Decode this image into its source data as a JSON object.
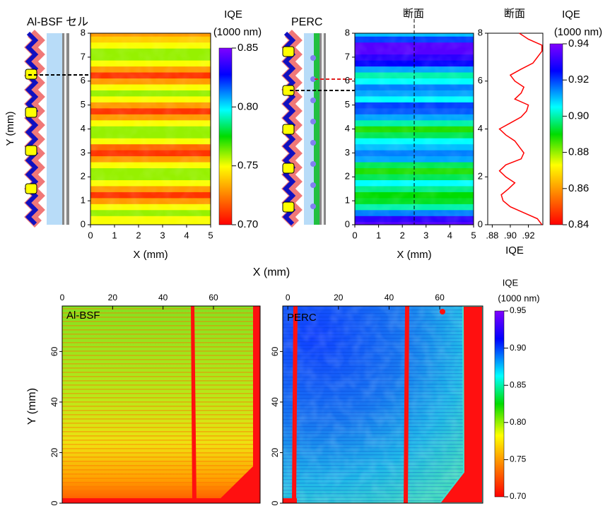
{
  "chart_data": [
    {
      "type": "heatmap",
      "title": "Al-BSF セル",
      "xlabel": "X (mm)",
      "ylabel": "Y (mm)",
      "xlim": [
        0,
        5
      ],
      "ylim": [
        0,
        8
      ],
      "xticks": [
        0,
        1,
        2,
        3,
        4,
        5
      ],
      "yticks": [
        0,
        1,
        2,
        3,
        4,
        5,
        6,
        7,
        8
      ],
      "y": [
        0,
        0.25,
        0.5,
        0.75,
        1,
        1.25,
        1.5,
        1.75,
        2,
        2.25,
        2.5,
        2.75,
        3,
        3.25,
        3.5,
        3.75,
        4,
        4.25,
        4.5,
        4.75,
        5,
        5.25,
        5.5,
        5.75,
        6,
        6.25,
        6.5,
        6.75,
        7,
        7.25,
        7.5,
        7.75,
        8
      ],
      "values": [
        0.75,
        0.75,
        0.76,
        0.75,
        0.73,
        0.71,
        0.73,
        0.75,
        0.76,
        0.76,
        0.75,
        0.73,
        0.71,
        0.72,
        0.75,
        0.76,
        0.76,
        0.75,
        0.73,
        0.71,
        0.73,
        0.75,
        0.76,
        0.75,
        0.73,
        0.71,
        0.73,
        0.75,
        0.76,
        0.76,
        0.75,
        0.74,
        0.73
      ]
    },
    {
      "type": "colorbar",
      "title": "IQE",
      "subtitle": "(1000 nm)",
      "lim": [
        0.7,
        0.85
      ],
      "ticks": [
        {
          "value": 0.7,
          "label": "0.70"
        },
        0.75,
        {
          "value": 0.8,
          "label": "0.80"
        },
        0.85
      ]
    },
    {
      "type": "heatmap",
      "title": "PERC",
      "annotation": "断面",
      "xlabel": "X (mm)",
      "section_x": 2.5,
      "xlim": [
        0,
        5
      ],
      "ylim": [
        0,
        8
      ],
      "xticks": [
        0,
        1,
        2,
        3,
        4,
        5
      ],
      "yticks": [
        0,
        1,
        2,
        3,
        4,
        5,
        6,
        7,
        8
      ],
      "y": [
        0,
        0.25,
        0.5,
        0.75,
        1,
        1.25,
        1.5,
        1.75,
        2,
        2.25,
        2.5,
        2.75,
        3,
        3.25,
        3.5,
        3.75,
        4,
        4.25,
        4.5,
        4.75,
        5,
        5.25,
        5.5,
        5.75,
        6,
        6.25,
        6.5,
        6.75,
        7,
        7.25,
        7.5,
        7.75,
        8
      ],
      "values": [
        0.935,
        0.93,
        0.915,
        0.9,
        0.892,
        0.89,
        0.898,
        0.905,
        0.895,
        0.888,
        0.895,
        0.912,
        0.915,
        0.91,
        0.905,
        0.895,
        0.888,
        0.9,
        0.912,
        0.918,
        0.92,
        0.905,
        0.912,
        0.915,
        0.905,
        0.9,
        0.912,
        0.925,
        0.93,
        0.935,
        0.935,
        0.92,
        0.91
      ]
    },
    {
      "type": "line",
      "title": "断面",
      "xlabel": "IQE",
      "xlim": [
        0.875,
        0.936
      ],
      "ylim": [
        0,
        8
      ],
      "xticks": [
        {
          "value": 0.88,
          "label": ".88"
        },
        {
          "value": 0.9,
          "label": ".90"
        },
        {
          "value": 0.92,
          "label": ".92"
        }
      ],
      "yticks": [
        0,
        2,
        4,
        6,
        8
      ],
      "y": [
        0,
        0.25,
        0.5,
        0.75,
        1,
        1.25,
        1.5,
        1.75,
        2,
        2.25,
        2.5,
        2.75,
        3,
        3.25,
        3.5,
        3.75,
        4,
        4.25,
        4.5,
        4.75,
        5,
        5.25,
        5.5,
        5.75,
        6,
        6.25,
        6.5,
        6.75,
        7,
        7.25,
        7.5,
        7.75,
        8
      ],
      "series": [
        {
          "color": "#ff0000",
          "values": [
            0.935,
            0.93,
            0.915,
            0.9,
            0.892,
            0.89,
            0.898,
            0.905,
            0.895,
            0.888,
            0.895,
            0.912,
            0.915,
            0.91,
            0.905,
            0.895,
            0.888,
            0.9,
            0.912,
            0.918,
            0.92,
            0.905,
            0.912,
            0.915,
            0.905,
            0.9,
            0.912,
            0.925,
            0.93,
            0.935,
            0.935,
            0.92,
            0.91
          ]
        }
      ]
    },
    {
      "type": "colorbar",
      "title": "IQE",
      "subtitle": "(1000 nm)",
      "lim": [
        0.84,
        0.94
      ],
      "ticks": [
        0.84,
        0.86,
        0.88,
        {
          "value": 0.9,
          "label": "0.90"
        },
        0.92,
        0.94
      ]
    },
    {
      "type": "image",
      "title": "Al-BSF",
      "xlabel": "X (mm)",
      "ylabel": "Y (mm)",
      "xlim": [
        0,
        78.5
      ],
      "ylim": [
        0,
        78
      ],
      "xticks": [
        0,
        20,
        40,
        60
      ],
      "yticks": [
        0,
        20,
        40,
        60
      ]
    },
    {
      "type": "image",
      "title": "PERC",
      "xlim": [
        -2,
        77
      ],
      "ylim": [
        0,
        78
      ],
      "xticks": [
        0,
        20,
        40,
        60
      ],
      "yticks": [
        0,
        20,
        40,
        60
      ]
    },
    {
      "type": "colorbar",
      "title": "IQE",
      "subtitle": "(1000 nm)",
      "lim": [
        0.7,
        0.95
      ],
      "ticks": [
        {
          "value": 0.7,
          "label": "0.70"
        },
        0.75,
        {
          "value": 0.8,
          "label": "0.80"
        },
        0.85,
        {
          "value": 0.9,
          "label": "0.90"
        },
        0.95
      ]
    }
  ]
}
